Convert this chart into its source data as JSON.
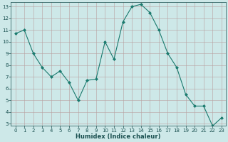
{
  "x": [
    0,
    1,
    2,
    3,
    4,
    5,
    6,
    7,
    8,
    9,
    10,
    11,
    12,
    13,
    14,
    15,
    16,
    17,
    18,
    19,
    20,
    21,
    22,
    23
  ],
  "y": [
    10.7,
    11.0,
    9.0,
    7.8,
    7.0,
    7.5,
    6.5,
    5.0,
    6.7,
    6.8,
    10.0,
    8.5,
    11.7,
    13.0,
    13.2,
    12.5,
    11.0,
    9.0,
    7.8,
    5.5,
    4.5,
    4.5,
    2.8,
    3.5
  ],
  "xlabel": "Humidex (Indice chaleur)",
  "xlim_min": -0.5,
  "xlim_max": 23.5,
  "ylim_min": 2.8,
  "ylim_max": 13.4,
  "yticks": [
    3,
    4,
    5,
    6,
    7,
    8,
    9,
    10,
    11,
    12,
    13
  ],
  "xticks": [
    0,
    1,
    2,
    3,
    4,
    5,
    6,
    7,
    8,
    9,
    10,
    11,
    12,
    13,
    14,
    15,
    16,
    17,
    18,
    19,
    20,
    21,
    22,
    23
  ],
  "line_color": "#1a7a6e",
  "marker": "D",
  "marker_size": 2.0,
  "bg_color": "#cde8e8",
  "grid_color_major": "#b8a0a0",
  "axis_label_color": "#1a5050",
  "tick_label_color": "#1a5050",
  "tick_fontsize": 5.0,
  "xlabel_fontsize": 6.0,
  "linewidth": 0.8
}
